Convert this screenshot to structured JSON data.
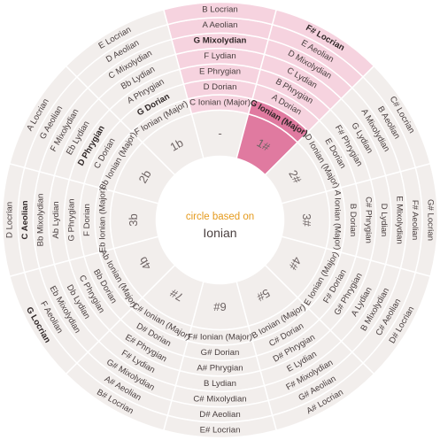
{
  "center": {
    "subtitle": "circle based on",
    "mode": "Ionian"
  },
  "colors": {
    "segment_bg": "#f2eeec",
    "border": "#ffffff",
    "selected_strong": "#e07aa0",
    "selected_light": "#f6d3df",
    "text": "#4a4040",
    "accent_text": "#e59a1c"
  },
  "selected_index": 1,
  "signatures": [
    "-",
    "1#",
    "2#",
    "3#",
    "4#",
    "5#",
    "6#",
    "7#",
    "4b",
    "3b",
    "2b",
    "1b"
  ],
  "mode_names": [
    "Ionian (Major)",
    "Dorian",
    "Phrygian",
    "Lydian",
    "Mixolydian",
    "Aeolian",
    "Locrian"
  ],
  "rings": [
    [
      "C",
      "G",
      "D",
      "A",
      "E",
      "B",
      "F#",
      "C#",
      "Ab",
      "Eb",
      "Bb",
      "F"
    ],
    [
      "D",
      "A",
      "E",
      "B",
      "F#",
      "C#",
      "G#",
      "D#",
      "Bb",
      "F",
      "C",
      "G"
    ],
    [
      "E",
      "B",
      "F#",
      "C#",
      "G#",
      "D#",
      "A#",
      "E#",
      "C",
      "G",
      "D",
      "A"
    ],
    [
      "F",
      "C",
      "G",
      "D",
      "A",
      "E",
      "B",
      "F#",
      "Db",
      "Ab",
      "Eb",
      "Bb"
    ],
    [
      "G",
      "D",
      "A",
      "E",
      "B",
      "F#",
      "C#",
      "G#",
      "Eb",
      "Bb",
      "F",
      "C"
    ],
    [
      "A",
      "E",
      "B",
      "F#",
      "C#",
      "G#",
      "D#",
      "A#",
      "F",
      "C",
      "G",
      "D"
    ],
    [
      "B",
      "F#",
      "C#",
      "G#",
      "D#",
      "A#",
      "E#",
      "B#",
      "G",
      "D",
      "A",
      "E"
    ]
  ],
  "bold_items": [
    [
      1,
      0
    ],
    [
      11,
      1
    ],
    [
      10,
      2
    ],
    [
      0,
      4
    ],
    [
      9,
      5
    ],
    [
      8,
      6
    ],
    [
      1,
      6
    ]
  ]
}
